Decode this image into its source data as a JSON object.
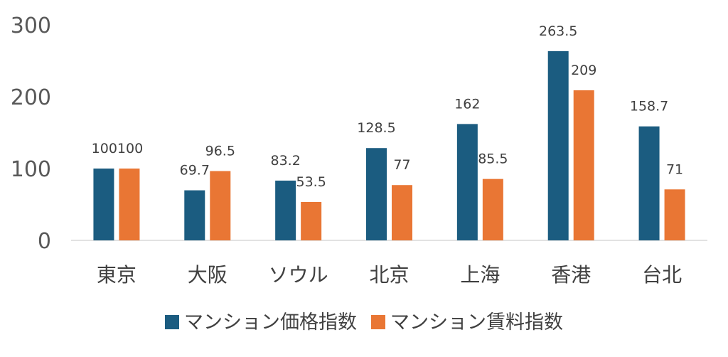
{
  "chart_data": {
    "type": "bar",
    "categories": [
      "東京",
      "大阪",
      "ソウル",
      "北京",
      "上海",
      "香港",
      "台北"
    ],
    "series": [
      {
        "name": "マンション価格指数",
        "values": [
          100,
          69.7,
          83.2,
          128.5,
          162,
          263.5,
          158.7
        ],
        "labels": [
          "100",
          "69.7",
          "83.2",
          "128.5",
          "162",
          "263.5",
          "158.7"
        ]
      },
      {
        "name": "マンション賃料指数",
        "values": [
          100,
          96.5,
          53.5,
          77,
          85.5,
          209,
          71
        ],
        "labels": [
          "100",
          "96.5",
          "53.5",
          "77",
          "85.5",
          "209",
          "71"
        ]
      }
    ],
    "y_ticks": [
      "0",
      "100",
      "200",
      "300"
    ],
    "ylim": [
      0,
      300
    ],
    "grid": false,
    "legend": "bottom",
    "colors": [
      "#1b5c80",
      "#e97634"
    ]
  }
}
